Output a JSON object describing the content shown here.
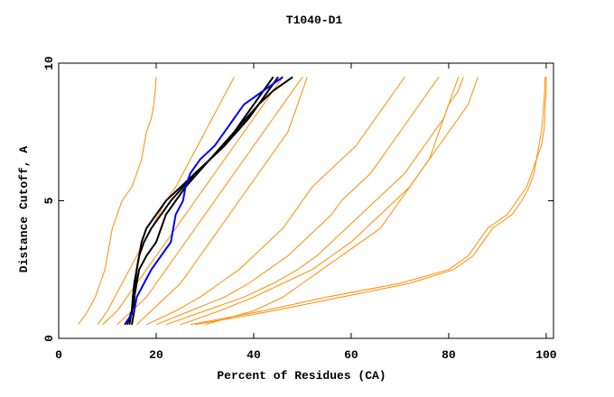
{
  "chart_data": {
    "type": "line",
    "title": "T1040-D1",
    "x_label": "Percent of Residues (CA)",
    "y_label": "Distance Cutoff, A",
    "xlim": [
      0,
      101.5
    ],
    "ylim": [
      0,
      10
    ],
    "xticks": [
      0,
      20,
      40,
      60,
      80,
      100
    ],
    "yticks": [
      0,
      5,
      10
    ],
    "y": [
      0.5,
      1,
      1.5,
      2,
      2.5,
      3,
      3.5,
      4,
      4.5,
      5,
      5.5,
      6,
      6.5,
      7,
      7.5,
      8,
      8.5,
      9,
      9.5
    ],
    "series": [
      {
        "color": "#ff8c00",
        "x": [
          4,
          6,
          7.5,
          8.5,
          9.5,
          10,
          10.5,
          11,
          12,
          13,
          15,
          16,
          17,
          17.5,
          18,
          19,
          19.5,
          19.8,
          20
        ]
      },
      {
        "color": "#ff8c00",
        "x": [
          8,
          10,
          11.5,
          13,
          14.5,
          16,
          17.5,
          19,
          20.5,
          22,
          24,
          25.5,
          27,
          28.5,
          30,
          31.5,
          33,
          34.5,
          36
        ]
      },
      {
        "color": "#ff8c00",
        "x": [
          9,
          12,
          14,
          16,
          18,
          20,
          22,
          24,
          26,
          28,
          30,
          32,
          34,
          36,
          38,
          40,
          42,
          44,
          46
        ]
      },
      {
        "color": "#ff8c00",
        "x": [
          12,
          15,
          18,
          20,
          22,
          24,
          26,
          28,
          30,
          32,
          34,
          36,
          38,
          40,
          42,
          44,
          46,
          48,
          50
        ]
      },
      {
        "color": "#ff8c00",
        "x": [
          16,
          19,
          22,
          25,
          27,
          29,
          31,
          33,
          35,
          37,
          39,
          41,
          43,
          45,
          47,
          48,
          49,
          50,
          51
        ]
      },
      {
        "color": "#ff8c00",
        "x": [
          18,
          24,
          29,
          33,
          37,
          40,
          43,
          46,
          48,
          50,
          52,
          55,
          58,
          61,
          63,
          65,
          67,
          69,
          71
        ]
      },
      {
        "color": "#ff8c00",
        "x": [
          20,
          27,
          34,
          39,
          43,
          47,
          50,
          53,
          56,
          58,
          61,
          64,
          66,
          68,
          70,
          72,
          74,
          76,
          78
        ]
      },
      {
        "color": "#ff8c00",
        "x": [
          22,
          30,
          38,
          44,
          49,
          53,
          56,
          59,
          62,
          65,
          68,
          71,
          73,
          75,
          77,
          79,
          80,
          82,
          83
        ]
      },
      {
        "color": "#ff8c00",
        "x": [
          25,
          33,
          40,
          46,
          52,
          56,
          60,
          63,
          66,
          69,
          72,
          74,
          76,
          77,
          78,
          79,
          80,
          81,
          82
        ]
      },
      {
        "color": "#ff8c00",
        "x": [
          30,
          40,
          46,
          50,
          54,
          58,
          62,
          66,
          68,
          70,
          72,
          74,
          76,
          78,
          80,
          82,
          84,
          85,
          86
        ]
      },
      {
        "color": "#ff8c00",
        "x": [
          27,
          42,
          55,
          70,
          80,
          84,
          86,
          88,
          92,
          94,
          96,
          97,
          98,
          98.5,
          99,
          99.3,
          99.5,
          99.7,
          99.8
        ]
      },
      {
        "color": "#ff8c00",
        "x": [
          28,
          44,
          58,
          72,
          81,
          85,
          87,
          89,
          93,
          95,
          96.5,
          97.5,
          98,
          99,
          99.5,
          99.7,
          99.8,
          100,
          100
        ]
      },
      {
        "color": "#000000",
        "x": [
          15,
          15.5,
          15.5,
          15.7,
          16,
          16.5,
          17,
          18,
          20,
          22,
          25,
          28,
          31,
          34,
          36,
          38,
          40,
          42,
          44
        ]
      },
      {
        "color": "#000000",
        "x": [
          14.5,
          15,
          15.2,
          15.5,
          16,
          16.5,
          17.5,
          19,
          21,
          23,
          25.5,
          28,
          31,
          34,
          36.5,
          39,
          41,
          43,
          45
        ]
      },
      {
        "color": "#000000",
        "x": [
          14,
          15,
          15.5,
          16,
          16.5,
          18,
          20,
          21,
          22,
          24,
          26,
          28.5,
          31,
          33.5,
          36,
          38.5,
          41,
          44,
          48
        ]
      },
      {
        "color": "#0000ff",
        "x": [
          13.5,
          15.5,
          16,
          17.5,
          19,
          21,
          23,
          23.5,
          24,
          25.5,
          26,
          27,
          29,
          32,
          34,
          36,
          38,
          42,
          46
        ]
      }
    ]
  }
}
